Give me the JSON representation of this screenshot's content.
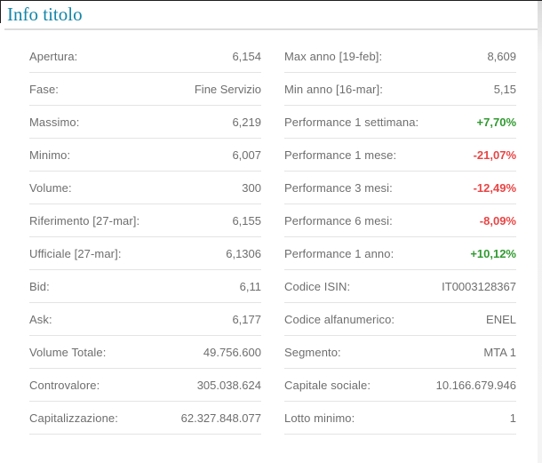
{
  "title": "Info titolo",
  "colors": {
    "accent_teal": "#1486a8",
    "positive_green": "#319a31",
    "negative_red": "#e94545",
    "label_gray": "#6e6e6e",
    "separator_gray": "#e4e4e4"
  },
  "columns": {
    "left": {
      "rows": [
        {
          "label": "Apertura:",
          "value": "6,154"
        },
        {
          "label": "Fase:",
          "value": "Fine Servizio"
        },
        {
          "label": "Massimo:",
          "value": "6,219"
        },
        {
          "label": "Minimo:",
          "value": "6,007"
        },
        {
          "label": "Volume:",
          "value": "300"
        },
        {
          "label": "Riferimento [27-mar]:",
          "value": "6,155"
        },
        {
          "label": "Ufficiale [27-mar]:",
          "value": "6,1306"
        },
        {
          "label": "Bid:",
          "value": "6,11"
        },
        {
          "label": "Ask:",
          "value": "6,177"
        },
        {
          "label": "Volume Totale:",
          "value": "49.756.600"
        },
        {
          "label": "Controvalore:",
          "value": "305.038.624"
        },
        {
          "label": "Capitalizzazione:",
          "value": "62.327.848.077"
        }
      ]
    },
    "right": {
      "rows": [
        {
          "label": "Max anno [19-feb]:",
          "value": "8,609"
        },
        {
          "label": "Min anno [16-mar]:",
          "value": "5,15"
        },
        {
          "label": "Performance 1 settimana:",
          "value": "+7,70%",
          "trend": "positive"
        },
        {
          "label": "Performance 1 mese:",
          "value": "-21,07%",
          "trend": "negative"
        },
        {
          "label": "Performance 3 mesi:",
          "value": "-12,49%",
          "trend": "negative"
        },
        {
          "label": "Performance 6 mesi:",
          "value": "-8,09%",
          "trend": "negative"
        },
        {
          "label": "Performance 1 anno:",
          "value": "+10,12%",
          "trend": "positive"
        },
        {
          "label": "Codice ISIN:",
          "value": "IT0003128367"
        },
        {
          "label": "Codice alfanumerico:",
          "value": "ENEL"
        },
        {
          "label": "Segmento:",
          "value": "MTA 1"
        },
        {
          "label": "Capitale sociale:",
          "value": "10.166.679.946"
        },
        {
          "label": "Lotto minimo:",
          "value": "1"
        }
      ]
    }
  }
}
